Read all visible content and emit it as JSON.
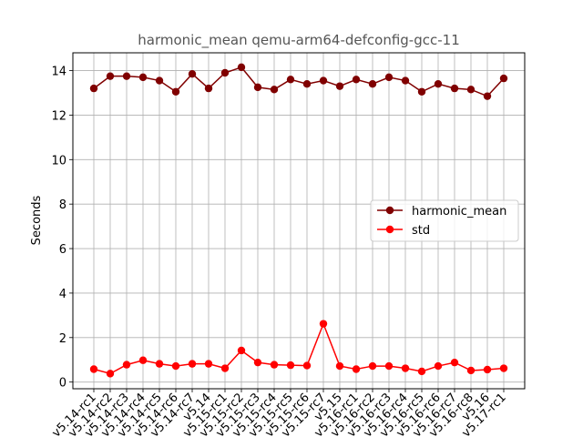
{
  "chart_data": {
    "type": "line",
    "title": "harmonic_mean qemu-arm64-defconfig-gcc-11",
    "xlabel": "",
    "ylabel": "Seconds",
    "ylim": [
      -0.3,
      14.8
    ],
    "yticks": [
      0,
      2,
      4,
      6,
      8,
      10,
      12,
      14
    ],
    "grid": true,
    "legend_position": "center-right",
    "categories": [
      "v5.14-rc1",
      "v5.14-rc2",
      "v5.14-rc3",
      "v5.14-rc4",
      "v5.14-rc5",
      "v5.14-rc6",
      "v5.14-rc7",
      "v5.14",
      "v5.15-rc1",
      "v5.15-rc2",
      "v5.15-rc3",
      "v5.15-rc4",
      "v5.15-rc5",
      "v5.15-rc6",
      "v5.15-rc7",
      "v5.15",
      "v5.16-rc1",
      "v5.16-rc2",
      "v5.16-rc3",
      "v5.16-rc4",
      "v5.16-rc5",
      "v5.16-rc6",
      "v5.16-rc7",
      "v5.16-rc8",
      "v5.16",
      "v5.17-rc1"
    ],
    "series": [
      {
        "name": "harmonic_mean",
        "color": "#800000",
        "values": [
          13.2,
          13.75,
          13.75,
          13.7,
          13.55,
          13.05,
          13.85,
          13.2,
          13.9,
          14.15,
          13.25,
          13.15,
          13.6,
          13.4,
          13.55,
          13.3,
          13.6,
          13.4,
          13.7,
          13.55,
          13.05,
          13.4,
          13.2,
          13.15,
          12.85,
          13.65
        ]
      },
      {
        "name": "std",
        "color": "#ff0000",
        "values": [
          0.58,
          0.38,
          0.78,
          0.98,
          0.82,
          0.72,
          0.82,
          0.82,
          0.62,
          1.42,
          0.88,
          0.78,
          0.76,
          0.74,
          2.62,
          0.72,
          0.58,
          0.72,
          0.72,
          0.62,
          0.48,
          0.72,
          0.88,
          0.52,
          0.56,
          0.62
        ]
      }
    ]
  }
}
